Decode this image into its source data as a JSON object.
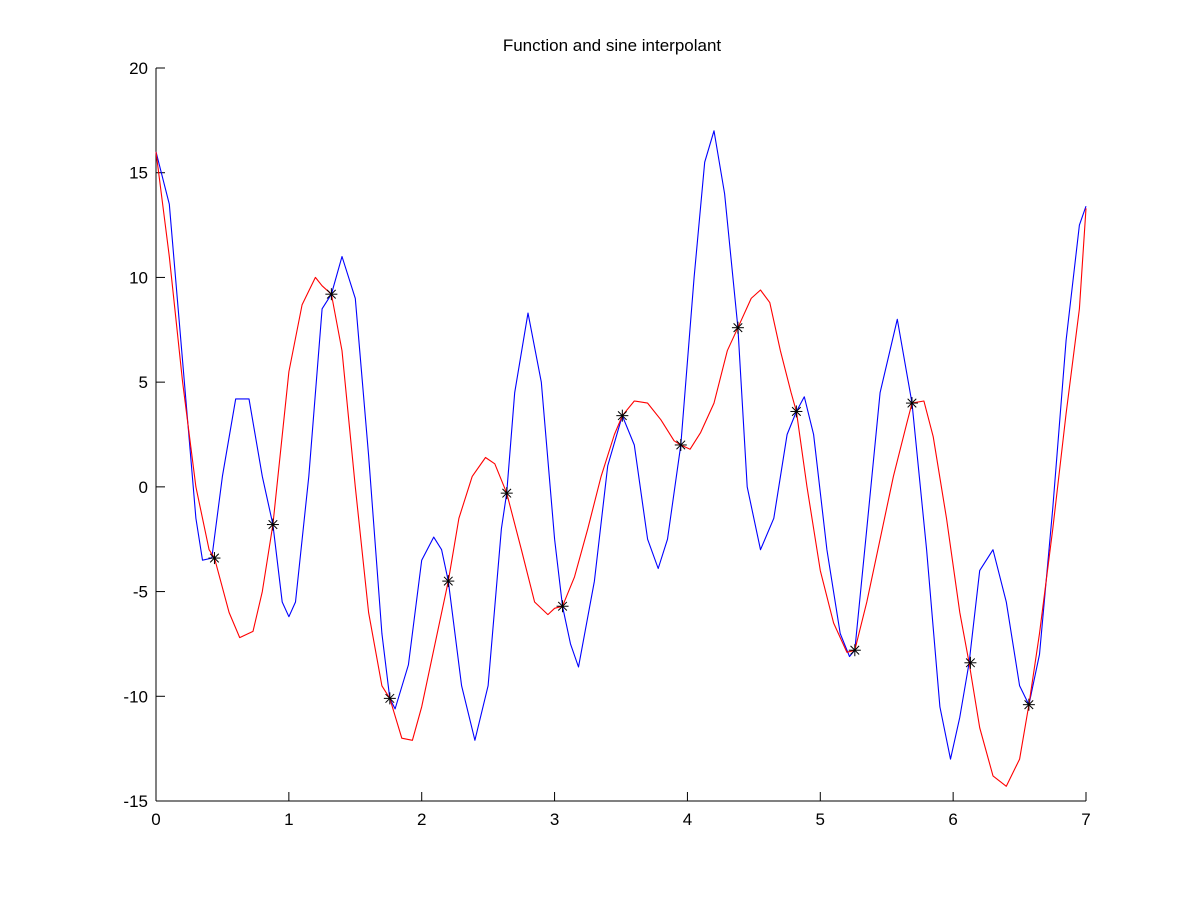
{
  "chart_data": {
    "type": "line",
    "title": "Function and sine interpolant",
    "xlabel": "",
    "ylabel": "",
    "xlim": [
      0,
      7
    ],
    "ylim": [
      -15,
      20
    ],
    "xticks": [
      0,
      1,
      2,
      3,
      4,
      5,
      6,
      7
    ],
    "yticks": [
      -15,
      -10,
      -5,
      0,
      5,
      10,
      15,
      20
    ],
    "grid": false,
    "series": [
      {
        "color": "#0000ff",
        "style": "line",
        "x": [
          0,
          0.1,
          0.2,
          0.3,
          0.35,
          0.42,
          0.5,
          0.6,
          0.7,
          0.8,
          0.88,
          0.95,
          1.0,
          1.05,
          1.15,
          1.25,
          1.32,
          1.4,
          1.5,
          1.6,
          1.7,
          1.76,
          1.8,
          1.9,
          2.0,
          2.09,
          2.15,
          2.2,
          2.3,
          2.4,
          2.5,
          2.6,
          2.64,
          2.7,
          2.8,
          2.9,
          3.0,
          3.06,
          3.12,
          3.18,
          3.3,
          3.4,
          3.51,
          3.6,
          3.7,
          3.78,
          3.85,
          3.95,
          4.05,
          4.13,
          4.2,
          4.28,
          4.38,
          4.45,
          4.55,
          4.65,
          4.75,
          4.82,
          4.88,
          4.95,
          5.05,
          5.15,
          5.22,
          5.26,
          5.35,
          5.45,
          5.58,
          5.69,
          5.8,
          5.9,
          5.98,
          6.05,
          6.12,
          6.2,
          6.3,
          6.4,
          6.5,
          6.57,
          6.65,
          6.75,
          6.85,
          6.95,
          7.0
        ],
        "y": [
          16,
          13.5,
          6,
          -1.5,
          -3.5,
          -3.4,
          0.5,
          4.2,
          4.2,
          0.5,
          -1.8,
          -5.5,
          -6.2,
          -5.5,
          0.5,
          8.5,
          9.2,
          11,
          9,
          1.5,
          -7,
          -10.1,
          -10.6,
          -8.5,
          -3.5,
          -2.4,
          -3,
          -4.5,
          -9.5,
          -12.1,
          -9.5,
          -2,
          -0.3,
          4.5,
          8.3,
          5,
          -2.5,
          -5.7,
          -7.5,
          -8.6,
          -4.5,
          1,
          3.4,
          2,
          -2.5,
          -3.9,
          -2.5,
          2,
          10,
          15.5,
          17,
          14,
          7.6,
          0,
          -3,
          -1.5,
          2.5,
          3.6,
          4.3,
          2.5,
          -3,
          -7,
          -8.1,
          -7.8,
          -2,
          4.5,
          8,
          4,
          -3,
          -10.5,
          -13,
          -11,
          -8.4,
          -4,
          -3,
          -5.5,
          -9.5,
          -10.4,
          -8,
          -1,
          7,
          12.5,
          13.4
        ]
      },
      {
        "color": "#ff0000",
        "style": "line",
        "x": [
          0,
          0.1,
          0.2,
          0.3,
          0.4,
          0.44,
          0.55,
          0.63,
          0.73,
          0.8,
          0.88,
          1.0,
          1.1,
          1.2,
          1.25,
          1.32,
          1.4,
          1.5,
          1.6,
          1.7,
          1.76,
          1.85,
          1.93,
          2.0,
          2.1,
          2.2,
          2.28,
          2.38,
          2.48,
          2.55,
          2.64,
          2.75,
          2.85,
          2.95,
          3.0,
          3.06,
          3.15,
          3.25,
          3.35,
          3.45,
          3.51,
          3.6,
          3.7,
          3.8,
          3.9,
          3.95,
          4.02,
          4.1,
          4.2,
          4.3,
          4.38,
          4.48,
          4.55,
          4.62,
          4.7,
          4.78,
          4.82,
          4.9,
          5.0,
          5.1,
          5.2,
          5.26,
          5.35,
          5.45,
          5.55,
          5.65,
          5.69,
          5.78,
          5.85,
          5.95,
          6.05,
          6.12,
          6.2,
          6.3,
          6.4,
          6.5,
          6.57,
          6.65,
          6.75,
          6.85,
          6.95,
          7.0
        ],
        "y": [
          16,
          11,
          5,
          0,
          -3,
          -3.4,
          -6,
          -7.2,
          -6.9,
          -5,
          -1.8,
          5.5,
          8.7,
          10,
          9.6,
          9.2,
          6.5,
          0,
          -6,
          -9.5,
          -10.1,
          -12,
          -12.1,
          -10.5,
          -7.5,
          -4.5,
          -1.5,
          0.5,
          1.4,
          1.1,
          -0.3,
          -3,
          -5.5,
          -6.1,
          -5.8,
          -5.7,
          -4.3,
          -2,
          0.5,
          2.5,
          3.4,
          4.1,
          4,
          3.2,
          2.2,
          2,
          1.8,
          2.6,
          4,
          6.5,
          7.6,
          9,
          9.4,
          8.8,
          6.5,
          4.5,
          3.6,
          0,
          -4,
          -6.5,
          -7.9,
          -7.8,
          -5.5,
          -2.5,
          0.5,
          3,
          4,
          4.1,
          2.4,
          -1.5,
          -6,
          -8.4,
          -11.5,
          -13.8,
          -14.3,
          -13,
          -10.4,
          -7,
          -2,
          3.5,
          8.5,
          13.3
        ]
      },
      {
        "color": "#000080",
        "style": "markers",
        "marker": "asterisk",
        "x": [
          0.44,
          0.88,
          1.32,
          1.76,
          2.2,
          2.64,
          3.06,
          3.51,
          3.95,
          4.38,
          4.82,
          5.26,
          5.69,
          6.13,
          6.57
        ],
        "y": [
          -3.4,
          -1.8,
          9.2,
          -10.1,
          -4.5,
          -0.3,
          -5.7,
          3.4,
          2.0,
          7.6,
          3.6,
          -7.8,
          4.0,
          -8.4,
          -10.4
        ]
      }
    ]
  }
}
